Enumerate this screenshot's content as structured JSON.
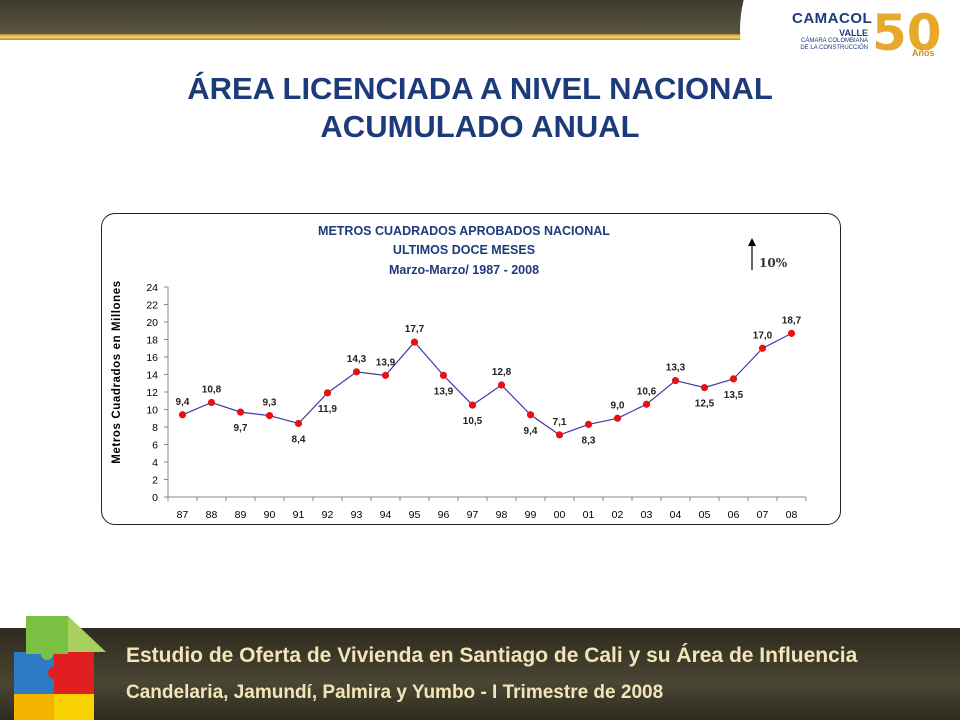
{
  "slide": {
    "title_line1": "ÁREA LICENCIADA A NIVEL NACIONAL",
    "title_line2": "ACUMULADO ANUAL"
  },
  "logo": {
    "name": "CAMACOL",
    "region": "VALLE",
    "tagline1": "CÁMARA COLOMBIANA",
    "tagline2": "DE LA CONSTRUCCIÓN",
    "anniversary": "50",
    "anniversary_label": "Años"
  },
  "footer": {
    "line1": "Estudio de Oferta de Vivienda en Santiago de Cali y su Área de Influencia",
    "line2": "Candelaria, Jamundí, Palmira y Yumbo - I Trimestre de 2008"
  },
  "colors": {
    "title": "#1d3a7a",
    "line": "#3a3aa8",
    "marker": "#e81010",
    "chart_title": "#1d3a7a"
  },
  "chart_data": {
    "type": "line",
    "title_line1": "METROS CUADRADOS APROBADOS NACIONAL",
    "title_line2": "ULTIMOS DOCE MESES",
    "title_line3": "Marzo-Marzo/ 1987 - 2008",
    "ylabel": "Metros Cuadrados en Millones",
    "xlabel": "",
    "ylim": [
      0,
      24
    ],
    "yticks": [
      0,
      2,
      4,
      6,
      8,
      10,
      12,
      14,
      16,
      18,
      20,
      22,
      24
    ],
    "categories": [
      "87",
      "88",
      "89",
      "90",
      "91",
      "92",
      "93",
      "94",
      "95",
      "96",
      "97",
      "98",
      "99",
      "00",
      "01",
      "02",
      "03",
      "04",
      "05",
      "06",
      "07",
      "08"
    ],
    "values": [
      9.4,
      10.8,
      9.7,
      9.3,
      8.4,
      11.9,
      14.3,
      13.9,
      17.7,
      13.9,
      10.5,
      12.8,
      9.4,
      7.1,
      8.3,
      9.0,
      10.6,
      13.3,
      12.5,
      13.5,
      17.0,
      18.7
    ],
    "labels": [
      "9,4",
      "10,8",
      "9,7",
      "9,3",
      "8,4",
      "11,9",
      "14,3",
      "13,9",
      "17,7",
      "13,9",
      "10,5",
      "12,8",
      "9,4",
      "7,1",
      "8,3",
      "9,0",
      "10,6",
      "13,3",
      "12,5",
      "13,5",
      "17,0",
      "18,7"
    ],
    "label_positions": [
      "above",
      "above",
      "below",
      "above",
      "below",
      "below",
      "above",
      "above",
      "above",
      "below",
      "below",
      "above",
      "below",
      "above",
      "below",
      "above",
      "above",
      "above",
      "below",
      "below",
      "above",
      "above"
    ],
    "annotation": "10%",
    "grid": false,
    "legend": "none"
  }
}
